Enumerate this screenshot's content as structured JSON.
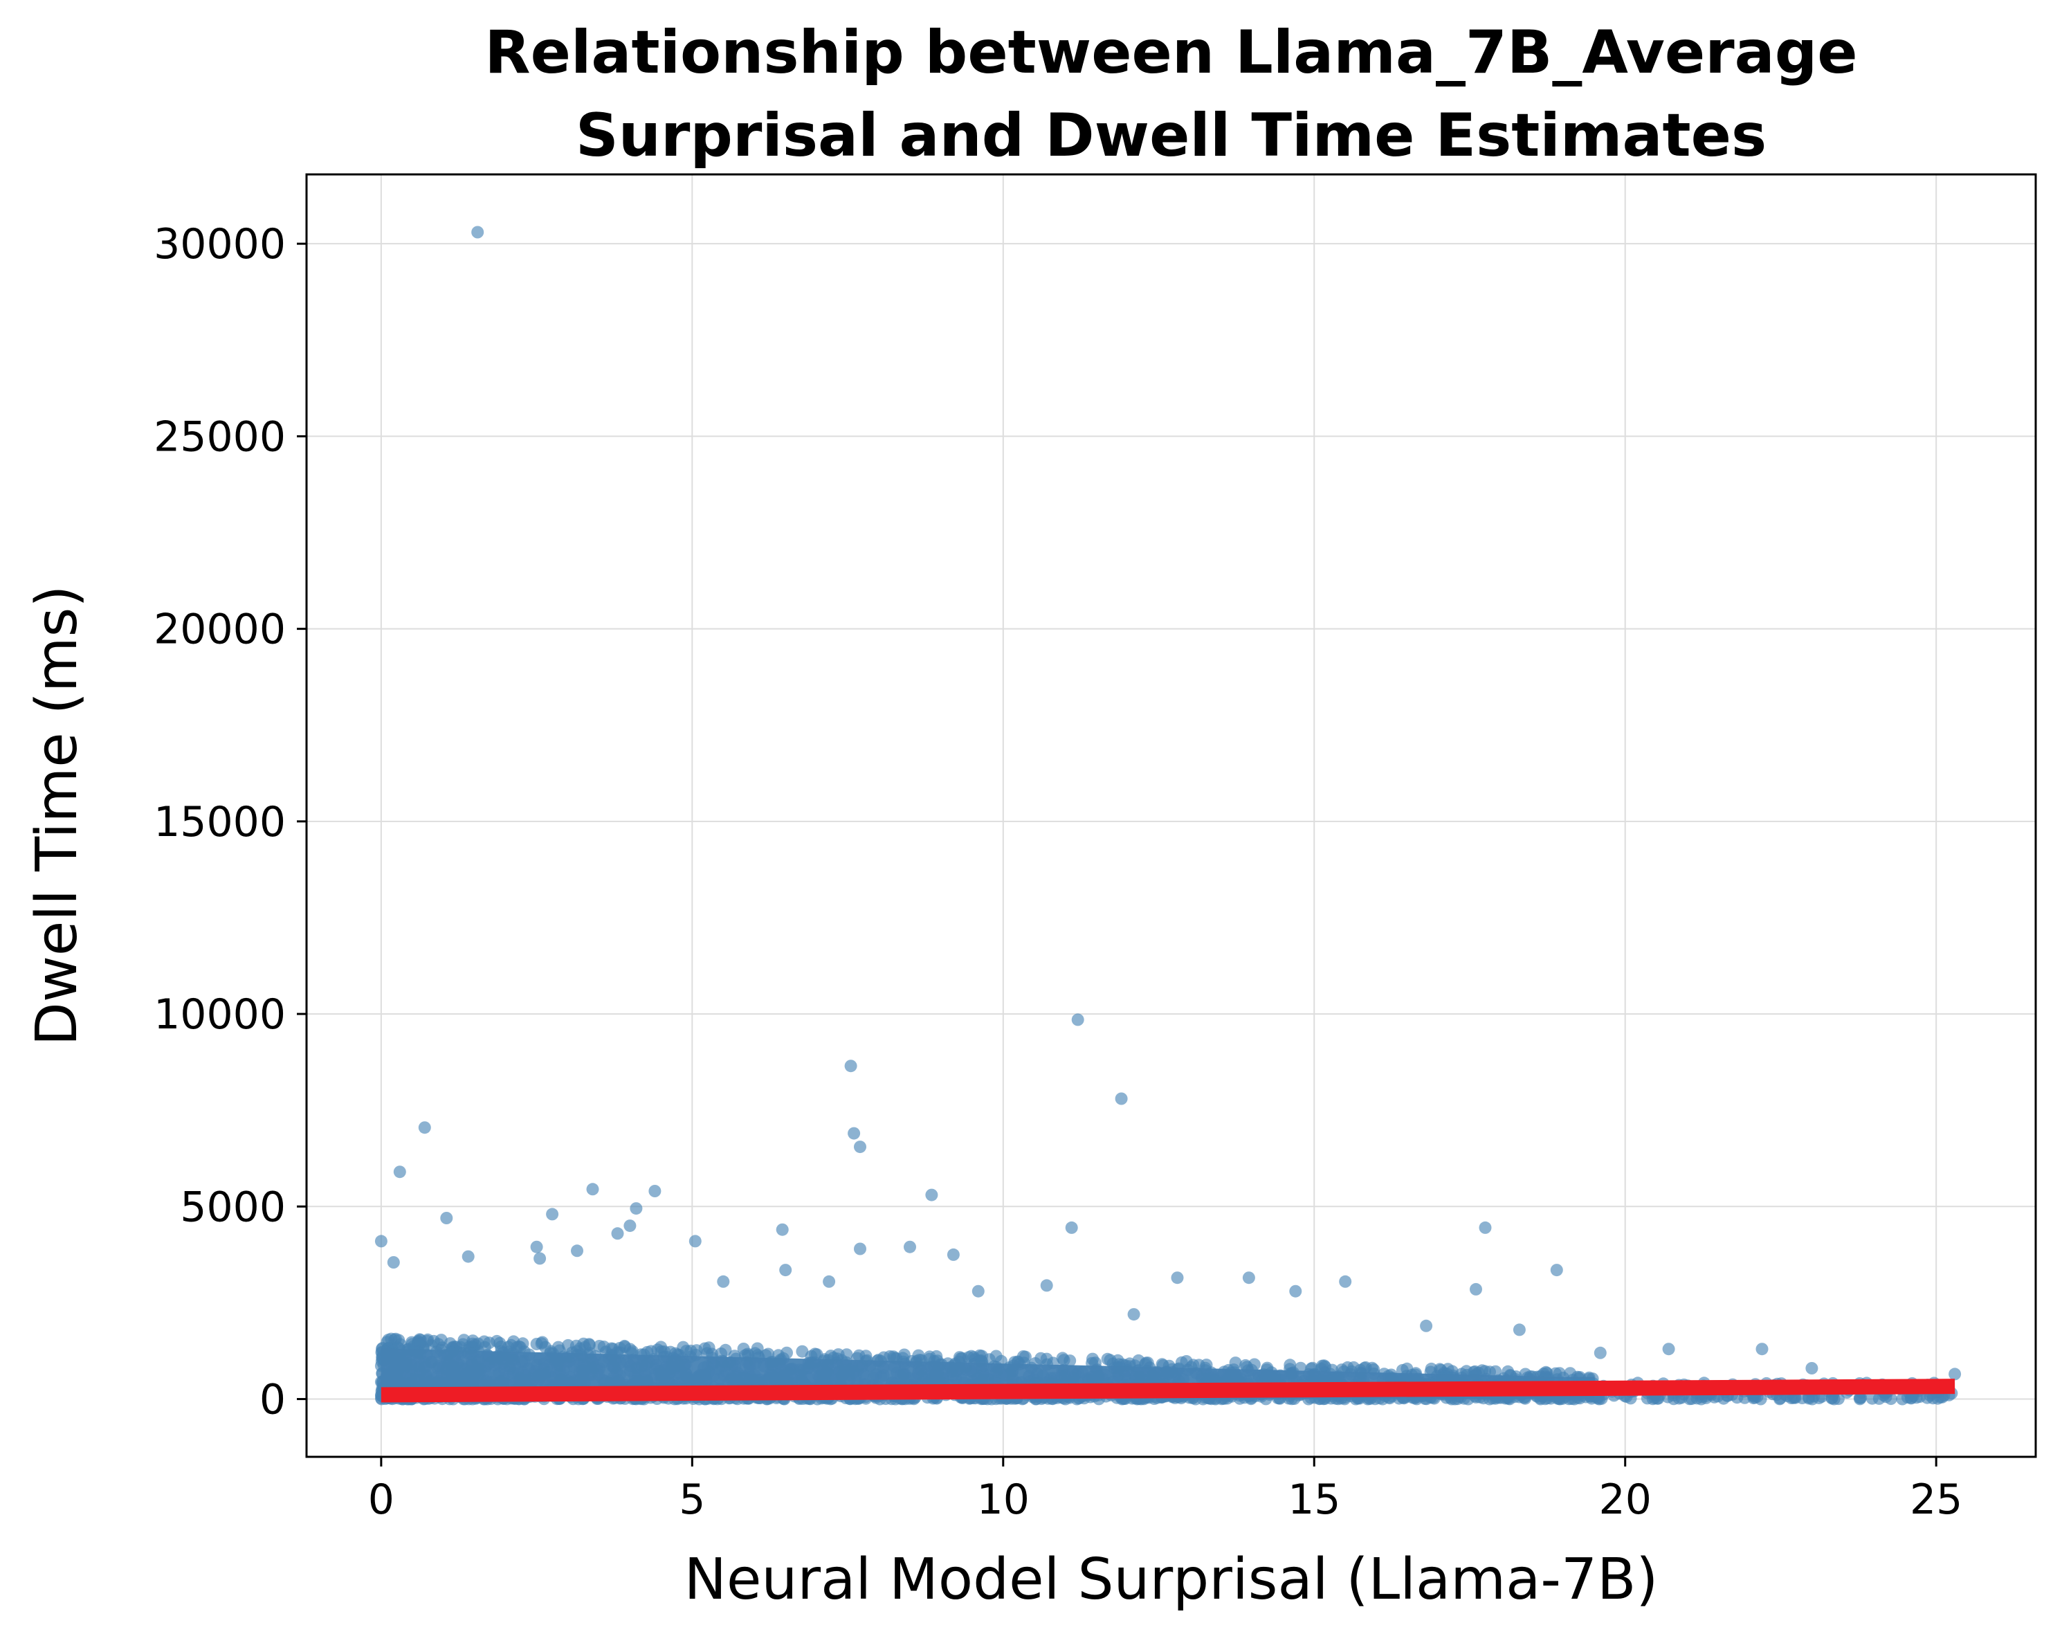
{
  "chart_data": {
    "type": "scatter",
    "title_lines": [
      "Relationship between Llama_7B_Average",
      "Surprisal and Dwell Time Estimates"
    ],
    "xlabel": "Neural Model Surprisal (Llama-7B)",
    "ylabel": "Dwell Time (ms)",
    "xlim": [
      -1.2,
      26.6
    ],
    "ylim": [
      -1500,
      31800
    ],
    "xticks": [
      0,
      5,
      10,
      15,
      20,
      25
    ],
    "yticks": [
      0,
      5000,
      10000,
      15000,
      20000,
      25000,
      30000
    ],
    "grid": true,
    "colors": {
      "points": "#4682b4",
      "trend": "#ee1c25",
      "grid": "#dddddd",
      "axes": "#000000"
    },
    "series": [
      {
        "kind": "scatter",
        "dense_band": {
          "x_max_full": 19.5,
          "x_max_sparse": 25.3,
          "y_top_at_0": 1600,
          "y_top_at_19": 700
        },
        "outliers": [
          [
            1.55,
            30300
          ],
          [
            11.2,
            9850
          ],
          [
            7.55,
            8650
          ],
          [
            11.9,
            7800
          ],
          [
            7.6,
            6900
          ],
          [
            7.7,
            6550
          ],
          [
            0.7,
            7050
          ],
          [
            0.3,
            5900
          ],
          [
            0.0,
            4100
          ],
          [
            1.05,
            4700
          ],
          [
            2.75,
            4800
          ],
          [
            3.4,
            5450
          ],
          [
            4.4,
            5400
          ],
          [
            4.1,
            4950
          ],
          [
            8.85,
            5300
          ],
          [
            11.1,
            4450
          ],
          [
            17.75,
            4450
          ],
          [
            6.45,
            4400
          ],
          [
            5.05,
            4100
          ],
          [
            8.5,
            3950
          ],
          [
            7.7,
            3900
          ],
          [
            2.5,
            3950
          ],
          [
            3.15,
            3850
          ],
          [
            18.9,
            3350
          ],
          [
            13.95,
            3150
          ],
          [
            12.8,
            3150
          ],
          [
            15.5,
            3050
          ],
          [
            14.7,
            2800
          ],
          [
            17.6,
            2850
          ],
          [
            10.7,
            2950
          ],
          [
            9.2,
            3750
          ],
          [
            6.5,
            3350
          ],
          [
            5.5,
            3050
          ],
          [
            0.2,
            3550
          ],
          [
            1.4,
            3700
          ],
          [
            4.0,
            4500
          ],
          [
            3.8,
            4300
          ],
          [
            2.55,
            3650
          ],
          [
            7.2,
            3050
          ],
          [
            12.1,
            2200
          ],
          [
            9.6,
            2800
          ],
          [
            16.8,
            1900
          ],
          [
            18.3,
            1800
          ],
          [
            19.6,
            1200
          ],
          [
            20.7,
            1300
          ],
          [
            22.2,
            1300
          ],
          [
            23.0,
            800
          ],
          [
            25.3,
            650
          ]
        ]
      },
      {
        "kind": "trend",
        "x": [
          0,
          25.3
        ],
        "y": [
          110,
          330
        ]
      }
    ]
  }
}
